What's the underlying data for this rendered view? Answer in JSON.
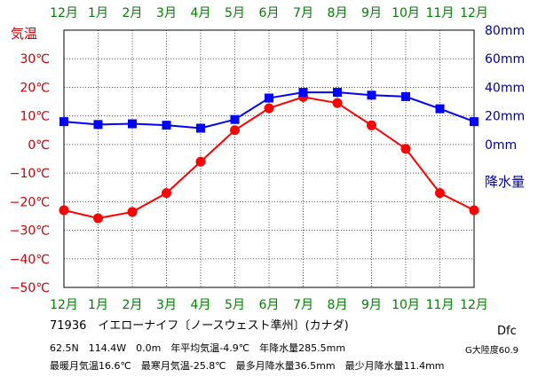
{
  "chart_data": {
    "type": "line",
    "categories": [
      "12月",
      "1月",
      "2月",
      "3月",
      "4月",
      "5月",
      "6月",
      "7月",
      "8月",
      "9月",
      "10月",
      "11月",
      "12月"
    ],
    "temp_label": "気温",
    "precip_label": "降水量",
    "temp_ticks": [
      "30℃",
      "20℃",
      "10℃",
      "0℃",
      "−10℃",
      "−20℃",
      "−30℃",
      "−40℃",
      "−50℃"
    ],
    "precip_ticks": [
      "80mm",
      "60mm",
      "40mm",
      "20mm",
      "0mm"
    ],
    "temp_range": [
      -50,
      40
    ],
    "precip_range": [
      -100,
      80
    ],
    "series": [
      {
        "name": "気温",
        "axis": "left",
        "color": "#ff0000",
        "marker": "circle",
        "values": [
          -23.0,
          -25.8,
          -23.6,
          -17.0,
          -6.0,
          5.0,
          12.7,
          16.6,
          14.5,
          6.7,
          -1.5,
          -17.0,
          -23.0
        ]
      },
      {
        "name": "降水量",
        "axis": "right",
        "color": "#0000ff",
        "marker": "square",
        "values": [
          16.0,
          14.0,
          14.5,
          13.5,
          11.4,
          17.5,
          32.5,
          36.5,
          36.5,
          34.5,
          33.5,
          25.0,
          16.0
        ]
      }
    ],
    "grid": true
  },
  "colors": {
    "temp_axis": "#cc0000",
    "precip_axis": "#000099",
    "month": "#008000"
  },
  "info": {
    "station": "71936　イエローナイフ〔ノースウェスト準州〕(カナダ)",
    "coords": "62.5N　114.4W　0.0m　年平均気温-4.9℃　年降水量285.5mm",
    "extremes": "最暖月気温16.6℃　最寒月気温-25.8℃　最多月降水量36.5mm　最少月降水量11.4mm",
    "koppen": "Dfc",
    "zone": "G大陸度60.9"
  }
}
